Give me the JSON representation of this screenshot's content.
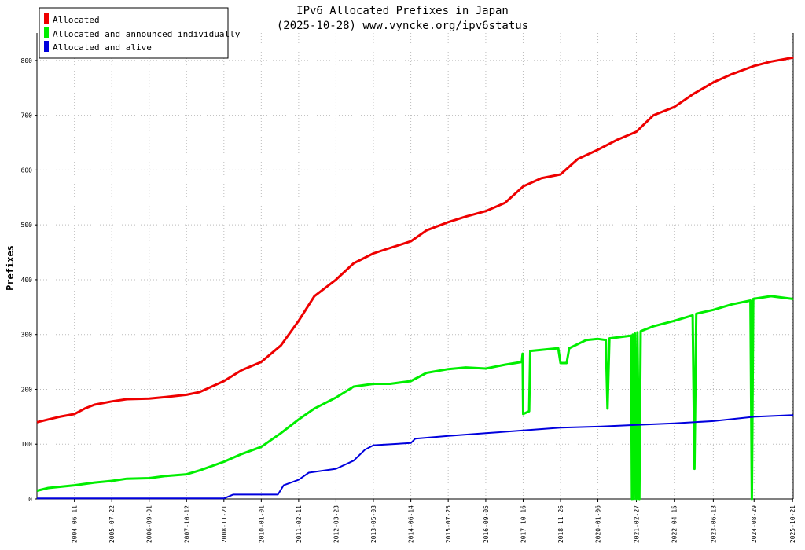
{
  "chart_data": {
    "type": "line",
    "title": "IPv6 Allocated Prefixes in Japan",
    "subtitle": "(2025-10-28) www.vyncke.org/ipv6status",
    "ylabel": "Prefixes",
    "xlabel": "",
    "ylim": [
      0,
      850
    ],
    "grid": true,
    "legend_position": "top-left",
    "y_ticks": [
      0,
      100,
      200,
      300,
      400,
      500,
      600,
      700,
      800
    ],
    "x_ticks": [
      "2004-06-11",
      "2005-07-22",
      "2006-09-01",
      "2007-10-12",
      "2008-11-21",
      "2010-01-01",
      "2011-02-11",
      "2012-03-23",
      "2013-05-03",
      "2014-06-14",
      "2015-07-25",
      "2016-09-05",
      "2017-10-16",
      "2018-11-26",
      "2020-01-06",
      "2021-02-27",
      "2022-04-15",
      "2023-06-13",
      "2024-08-29",
      "2025-10-21"
    ],
    "series": [
      {
        "name": "Allocated",
        "color": "#ee0000",
        "points": [
          [
            "2003-05-01",
            140
          ],
          [
            "2003-09-01",
            145
          ],
          [
            "2004-01-01",
            150
          ],
          [
            "2004-06-11",
            155
          ],
          [
            "2004-10-01",
            165
          ],
          [
            "2005-01-15",
            172
          ],
          [
            "2005-07-22",
            178
          ],
          [
            "2006-01-01",
            182
          ],
          [
            "2006-09-01",
            183
          ],
          [
            "2007-03-01",
            186
          ],
          [
            "2007-10-12",
            190
          ],
          [
            "2008-03-01",
            195
          ],
          [
            "2008-11-21",
            215
          ],
          [
            "2009-06-01",
            235
          ],
          [
            "2010-01-01",
            250
          ],
          [
            "2010-08-01",
            280
          ],
          [
            "2011-02-11",
            325
          ],
          [
            "2011-08-01",
            370
          ],
          [
            "2012-03-23",
            400
          ],
          [
            "2012-10-01",
            430
          ],
          [
            "2013-05-03",
            448
          ],
          [
            "2013-11-01",
            458
          ],
          [
            "2014-06-14",
            470
          ],
          [
            "2014-12-01",
            490
          ],
          [
            "2015-07-25",
            505
          ],
          [
            "2016-02-01",
            515
          ],
          [
            "2016-09-05",
            525
          ],
          [
            "2017-04-01",
            540
          ],
          [
            "2017-10-16",
            570
          ],
          [
            "2018-05-01",
            585
          ],
          [
            "2018-11-26",
            592
          ],
          [
            "2019-06-01",
            620
          ],
          [
            "2020-01-06",
            637
          ],
          [
            "2020-08-01",
            655
          ],
          [
            "2021-02-27",
            670
          ],
          [
            "2021-09-01",
            700
          ],
          [
            "2022-04-15",
            715
          ],
          [
            "2022-11-01",
            738
          ],
          [
            "2023-06-13",
            760
          ],
          [
            "2024-01-01",
            775
          ],
          [
            "2024-08-29",
            790
          ],
          [
            "2025-03-01",
            798
          ],
          [
            "2025-10-21",
            805
          ],
          [
            "2025-10-28",
            806
          ]
        ]
      },
      {
        "name": "Allocated and announced individually",
        "color": "#00ee00",
        "points": [
          [
            "2003-05-01",
            15
          ],
          [
            "2003-09-01",
            20
          ],
          [
            "2004-06-11",
            25
          ],
          [
            "2005-01-15",
            30
          ],
          [
            "2005-07-22",
            33
          ],
          [
            "2006-01-01",
            37
          ],
          [
            "2006-09-01",
            38
          ],
          [
            "2007-03-01",
            42
          ],
          [
            "2007-10-12",
            45
          ],
          [
            "2008-03-01",
            52
          ],
          [
            "2008-11-21",
            68
          ],
          [
            "2009-06-01",
            82
          ],
          [
            "2010-01-01",
            95
          ],
          [
            "2010-08-01",
            120
          ],
          [
            "2011-02-11",
            145
          ],
          [
            "2011-08-01",
            165
          ],
          [
            "2012-03-23",
            185
          ],
          [
            "2012-10-01",
            205
          ],
          [
            "2013-05-03",
            210
          ],
          [
            "2013-11-01",
            210
          ],
          [
            "2014-06-14",
            215
          ],
          [
            "2014-12-01",
            230
          ],
          [
            "2015-07-25",
            237
          ],
          [
            "2016-02-01",
            240
          ],
          [
            "2016-09-05",
            238
          ],
          [
            "2017-04-01",
            245
          ],
          [
            "2017-10-01",
            250
          ],
          [
            "2017-10-10",
            265
          ],
          [
            "2017-10-16",
            155
          ],
          [
            "2017-12-20",
            160
          ],
          [
            "2018-01-01",
            270
          ],
          [
            "2018-11-01",
            275
          ],
          [
            "2018-11-26",
            248
          ],
          [
            "2019-02-01",
            248
          ],
          [
            "2019-03-01",
            275
          ],
          [
            "2019-09-01",
            290
          ],
          [
            "2020-01-06",
            292
          ],
          [
            "2020-04-01",
            290
          ],
          [
            "2020-04-20",
            165
          ],
          [
            "2020-05-10",
            293
          ],
          [
            "2021-01-01",
            298
          ],
          [
            "2021-01-10",
            0
          ],
          [
            "2021-01-20",
            300
          ],
          [
            "2021-02-01",
            0
          ],
          [
            "2021-02-10",
            302
          ],
          [
            "2021-02-27",
            0
          ],
          [
            "2021-03-10",
            304
          ],
          [
            "2021-04-01",
            0
          ],
          [
            "2021-04-15",
            306
          ],
          [
            "2021-09-01",
            315
          ],
          [
            "2022-04-15",
            325
          ],
          [
            "2022-11-01",
            335
          ],
          [
            "2022-11-20",
            55
          ],
          [
            "2022-12-10",
            338
          ],
          [
            "2023-06-13",
            345
          ],
          [
            "2024-01-01",
            355
          ],
          [
            "2024-07-20",
            362
          ],
          [
            "2024-08-05",
            0
          ],
          [
            "2024-08-20",
            365
          ],
          [
            "2025-03-01",
            370
          ],
          [
            "2025-10-21",
            365
          ],
          [
            "2025-10-28",
            366
          ]
        ]
      },
      {
        "name": "Allocated and alive",
        "color": "#0000dd",
        "points": [
          [
            "2003-05-01",
            1
          ],
          [
            "2008-11-21",
            1
          ],
          [
            "2009-03-01",
            8
          ],
          [
            "2010-07-01",
            8
          ],
          [
            "2010-09-01",
            25
          ],
          [
            "2011-02-11",
            35
          ],
          [
            "2011-06-01",
            48
          ],
          [
            "2012-03-23",
            55
          ],
          [
            "2012-10-01",
            70
          ],
          [
            "2013-02-01",
            90
          ],
          [
            "2013-05-03",
            98
          ],
          [
            "2014-06-14",
            102
          ],
          [
            "2014-08-01",
            110
          ],
          [
            "2015-07-25",
            115
          ],
          [
            "2016-09-05",
            120
          ],
          [
            "2017-10-16",
            125
          ],
          [
            "2018-11-26",
            130
          ],
          [
            "2020-01-06",
            132
          ],
          [
            "2021-02-27",
            135
          ],
          [
            "2022-04-15",
            138
          ],
          [
            "2023-06-13",
            142
          ],
          [
            "2024-08-29",
            150
          ],
          [
            "2025-10-21",
            153
          ],
          [
            "2025-10-28",
            154
          ]
        ]
      }
    ]
  }
}
